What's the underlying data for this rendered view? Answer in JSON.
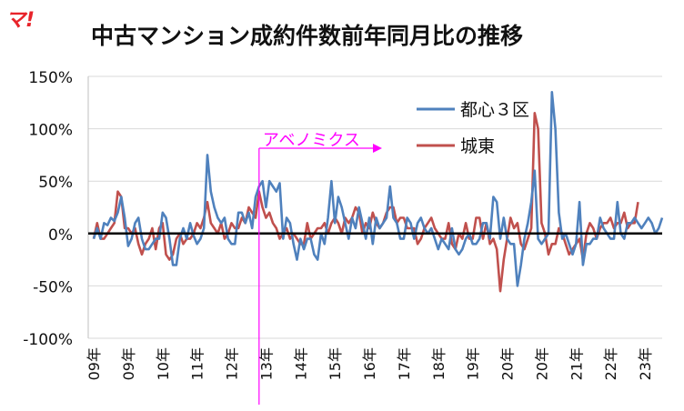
{
  "logo": "マ!",
  "chart_data": {
    "type": "line",
    "title": "中古マンション成約件数前年同月比の推移",
    "xlabel": "",
    "ylabel": "",
    "ylim": [
      -100,
      150
    ],
    "y_ticks": [
      "150%",
      "100%",
      "50%",
      "0%",
      "-50%",
      "-100%"
    ],
    "y_tick_values": [
      150,
      100,
      50,
      0,
      -50,
      -100
    ],
    "x_tick_labels": [
      "09年",
      "09年",
      "10年",
      "11年",
      "12年",
      "13年",
      "14年",
      "15年",
      "16年",
      "17年",
      "18年",
      "19年",
      "20年",
      "20年",
      "21年",
      "22年",
      "23年"
    ],
    "x_tick_months": [
      0,
      10,
      20,
      30,
      40,
      50,
      60,
      70,
      80,
      90,
      100,
      110,
      120,
      130,
      140,
      150,
      160
    ],
    "legend_position": "top-right",
    "grid": true,
    "annotation": {
      "label": "アベノミクス",
      "month": 48,
      "color": "#ff00ff"
    },
    "series": [
      {
        "name": "都心３区",
        "color": "#4f81bd",
        "values": [
          -5,
          5,
          -5,
          10,
          8,
          15,
          12,
          20,
          35,
          15,
          -12,
          -5,
          10,
          15,
          -5,
          -15,
          -15,
          -10,
          -5,
          -5,
          20,
          15,
          -5,
          -30,
          -30,
          -5,
          5,
          -5,
          10,
          -2,
          -10,
          -5,
          5,
          75,
          40,
          25,
          15,
          10,
          15,
          -5,
          -10,
          -10,
          20,
          20,
          10,
          20,
          5,
          35,
          45,
          50,
          25,
          50,
          45,
          40,
          48,
          -5,
          15,
          10,
          -10,
          -25,
          -5,
          -15,
          -5,
          -5,
          -20,
          -25,
          0,
          -10,
          15,
          50,
          10,
          35,
          25,
          10,
          -5,
          15,
          5,
          25,
          10,
          -5,
          15,
          -10,
          15,
          5,
          10,
          15,
          45,
          15,
          10,
          -5,
          -5,
          15,
          10,
          -5,
          10,
          15,
          5,
          0,
          5,
          -5,
          -15,
          -5,
          -10,
          -15,
          5,
          -15,
          -20,
          -15,
          -5,
          0,
          -10,
          -10,
          -5,
          10,
          10,
          -5,
          35,
          30,
          -5,
          15,
          -5,
          -10,
          -10,
          -50,
          -30,
          -5,
          10,
          30,
          60,
          -5,
          -10,
          -5,
          0,
          135,
          100,
          20,
          -5,
          0,
          -10,
          -20,
          -10,
          30,
          -30,
          -10,
          -10,
          -5,
          -5,
          15,
          5,
          0,
          -5,
          -5,
          30,
          0,
          -5,
          10,
          10,
          15,
          10,
          5,
          10,
          15,
          10,
          0,
          5,
          15
        ]
      },
      {
        "name": "城東",
        "color": "#c0504d",
        "values": [
          -5,
          10,
          -5,
          -5,
          0,
          5,
          10,
          40,
          35,
          5,
          5,
          0,
          5,
          -10,
          -20,
          -10,
          -5,
          5,
          -15,
          5,
          10,
          -20,
          -25,
          -20,
          -5,
          0,
          -10,
          -5,
          -5,
          0,
          10,
          5,
          15,
          30,
          10,
          5,
          0,
          10,
          -5,
          0,
          10,
          5,
          5,
          15,
          10,
          25,
          20,
          15,
          40,
          25,
          15,
          20,
          10,
          5,
          -5,
          0,
          5,
          -5,
          0,
          -5,
          -10,
          -10,
          10,
          -5,
          0,
          5,
          5,
          10,
          0,
          10,
          15,
          10,
          0,
          15,
          10,
          15,
          25,
          20,
          0,
          10,
          5,
          20,
          10,
          5,
          10,
          20,
          25,
          25,
          10,
          15,
          15,
          5,
          5,
          5,
          -10,
          -5,
          5,
          10,
          15,
          5,
          0,
          -5,
          -5,
          10,
          -10,
          -15,
          0,
          -5,
          10,
          -5,
          -5,
          15,
          15,
          -5,
          10,
          -10,
          -5,
          -15,
          -55,
          -25,
          -5,
          15,
          5,
          10,
          -10,
          -15,
          -5,
          5,
          115,
          100,
          10,
          0,
          -20,
          -10,
          -10,
          5,
          0,
          -10,
          -20,
          -15,
          -10,
          -5,
          -25,
          0,
          10,
          5,
          -5,
          5,
          10,
          10,
          15,
          5,
          10,
          10,
          20,
          5,
          10,
          10,
          30
        ]
      }
    ]
  }
}
